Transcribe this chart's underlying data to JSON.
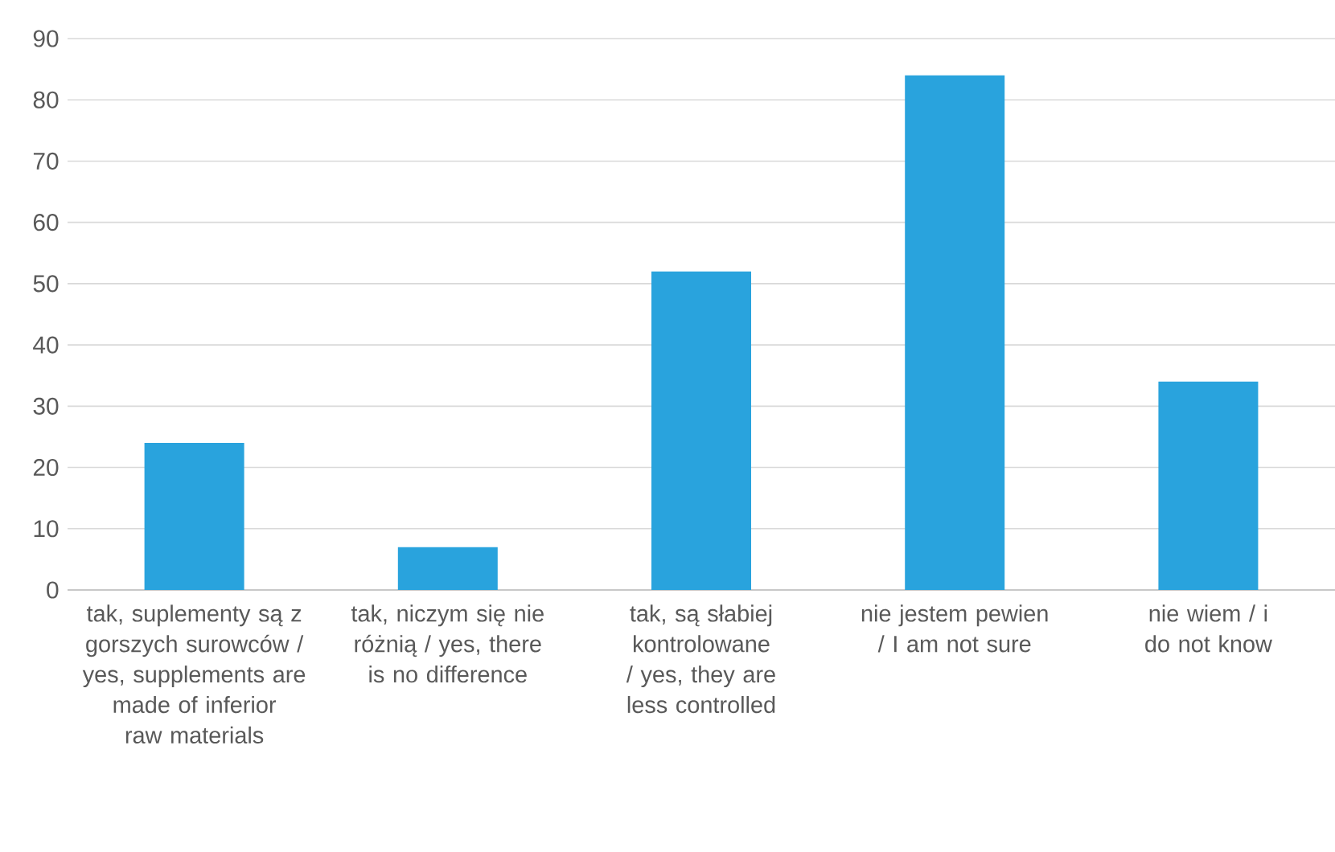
{
  "chart_data": {
    "type": "bar",
    "categories": [
      "tak, suplementy są z gorszych surowców / yes, supplements are made of inferior raw materials",
      "tak, niczym się nie różnią / yes, there is no difference",
      "tak, są słabiej kontrolowane / yes, they are less controlled",
      "nie jestem pewien / I am not sure",
      "nie wiem / i do not know"
    ],
    "values": [
      24,
      7,
      52,
      84,
      34
    ],
    "color": "#29a3dd",
    "ylim": [
      0,
      90
    ],
    "yticks": [
      0,
      10,
      20,
      30,
      40,
      50,
      60,
      70,
      80,
      90
    ],
    "grid": "y"
  }
}
